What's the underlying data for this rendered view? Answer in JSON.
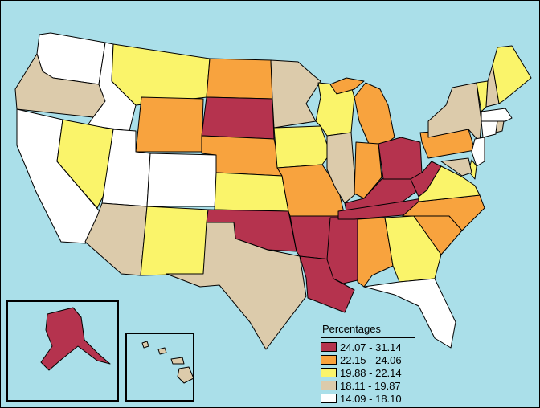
{
  "legend": {
    "title": "Percentages",
    "items": [
      {
        "label": "24.07 - 31.14",
        "color": "#b5334e"
      },
      {
        "label": "22.15 - 24.06",
        "color": "#f8a33e"
      },
      {
        "label": "19.88 - 22.14",
        "color": "#faf46a"
      },
      {
        "label": "18.11 - 19.87",
        "color": "#dccbab"
      },
      {
        "label": "14.09 - 18.10",
        "color": "#ffffff"
      }
    ]
  },
  "map": {
    "background_color": "#aadfe9",
    "region_classes": {
      "WA": 4,
      "OR": 3,
      "CA": 4,
      "ID": 4,
      "NV": 2,
      "MT": 2,
      "WY": 1,
      "UT": 4,
      "AZ": 3,
      "CO": 4,
      "NM": 2,
      "ND": 1,
      "SD": 0,
      "NE": 1,
      "KS": 2,
      "OK": 0,
      "TX": 3,
      "MN": 3,
      "IA": 2,
      "MO": 1,
      "AR": 0,
      "LA": 0,
      "WI": 2,
      "IL": 3,
      "MS": 0,
      "MI": 1,
      "IN": 1,
      "KY": 0,
      "TN": 0,
      "AL": 1,
      "OH": 0,
      "WV": 0,
      "GA": 2,
      "FL": 4,
      "SC": 1,
      "NC": 1,
      "VA": 2,
      "PA": 1,
      "NY": 3,
      "VT": 2,
      "NH": 3,
      "ME": 2,
      "MA": 4,
      "CT": 4,
      "RI": 3,
      "NJ": 4,
      "DE": 2,
      "MD": 3,
      "AK": 0,
      "HI": 3
    }
  }
}
